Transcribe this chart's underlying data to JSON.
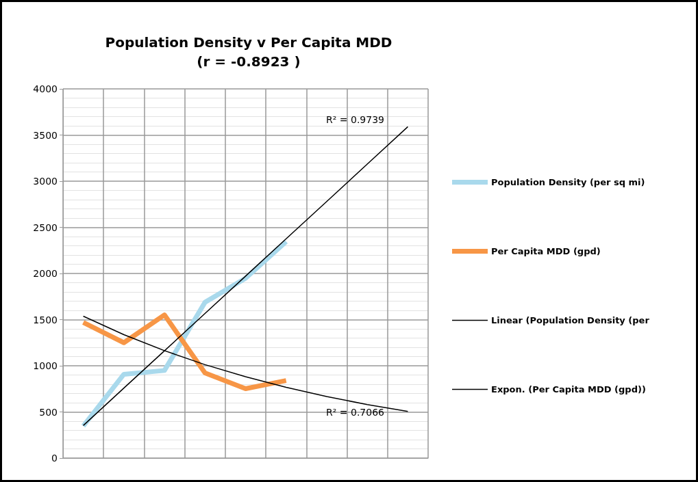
{
  "chart_data": {
    "type": "line",
    "title": "Population Density v Per Capita MDD\n(r = -0.8923 )",
    "categories": [
      null,
      null,
      null,
      null,
      null,
      null,
      null,
      null,
      null
    ],
    "series": [
      {
        "name": "Population Density (per sq mi)",
        "color": "#a9d9ec",
        "values": [
          347,
          908,
          949,
          1688,
          1948,
          2345,
          null,
          null,
          null
        ]
      },
      {
        "name": "Per Capita MDD (gpd)",
        "color": "#f79646",
        "values": [
          1469,
          1250,
          1551,
          922,
          752,
          840,
          null,
          null,
          null
        ]
      },
      {
        "name": "Linear (Population Density (per",
        "color": "#000000",
        "values": [
          353,
          758,
          1162,
          1567,
          1971,
          2376,
          2780,
          3185,
          3590
        ]
      },
      {
        "name": "Expon. (Per Capita MDD (gpd))",
        "color": "#000000",
        "values": [
          1537,
          1337,
          1164,
          1012,
          881,
          766,
          667,
          580,
          505
        ]
      }
    ],
    "ylim": [
      0,
      4000
    ],
    "yticks": [
      0,
      500,
      1000,
      1500,
      2000,
      2500,
      3000,
      3500,
      4000
    ],
    "annotations": [
      "R² = 0.9739",
      "R² = 0.7066"
    ],
    "grid": true,
    "legend": "right",
    "marker": "none",
    "line_style": "solid"
  }
}
